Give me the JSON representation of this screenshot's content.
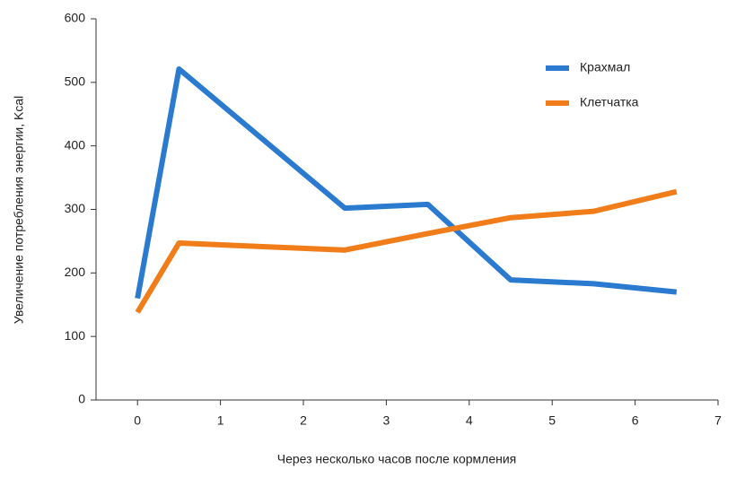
{
  "chart_data": {
    "type": "line",
    "x_label": "Через несколько часов после кормления",
    "y_label": "Увеличение потребления энергии, Kcal",
    "x": [
      0,
      0.5,
      2.5,
      3.5,
      4.5,
      5.5,
      6.5
    ],
    "series": [
      {
        "name": "Крахмал",
        "color": "#2a7bcf",
        "values": [
          160,
          521,
          302,
          308,
          189,
          183,
          170
        ]
      },
      {
        "name": "Клетчатка",
        "color": "#f07d1a",
        "values": [
          138,
          247,
          236,
          262,
          287,
          297,
          328
        ]
      }
    ],
    "xlim": [
      -0.5,
      7
    ],
    "xticks": [
      0,
      1,
      2,
      3,
      4,
      5,
      6,
      7
    ],
    "ylim": [
      0,
      600
    ],
    "yticks": [
      0,
      100,
      200,
      300,
      400,
      500,
      600
    ],
    "legend": "upper-right"
  }
}
